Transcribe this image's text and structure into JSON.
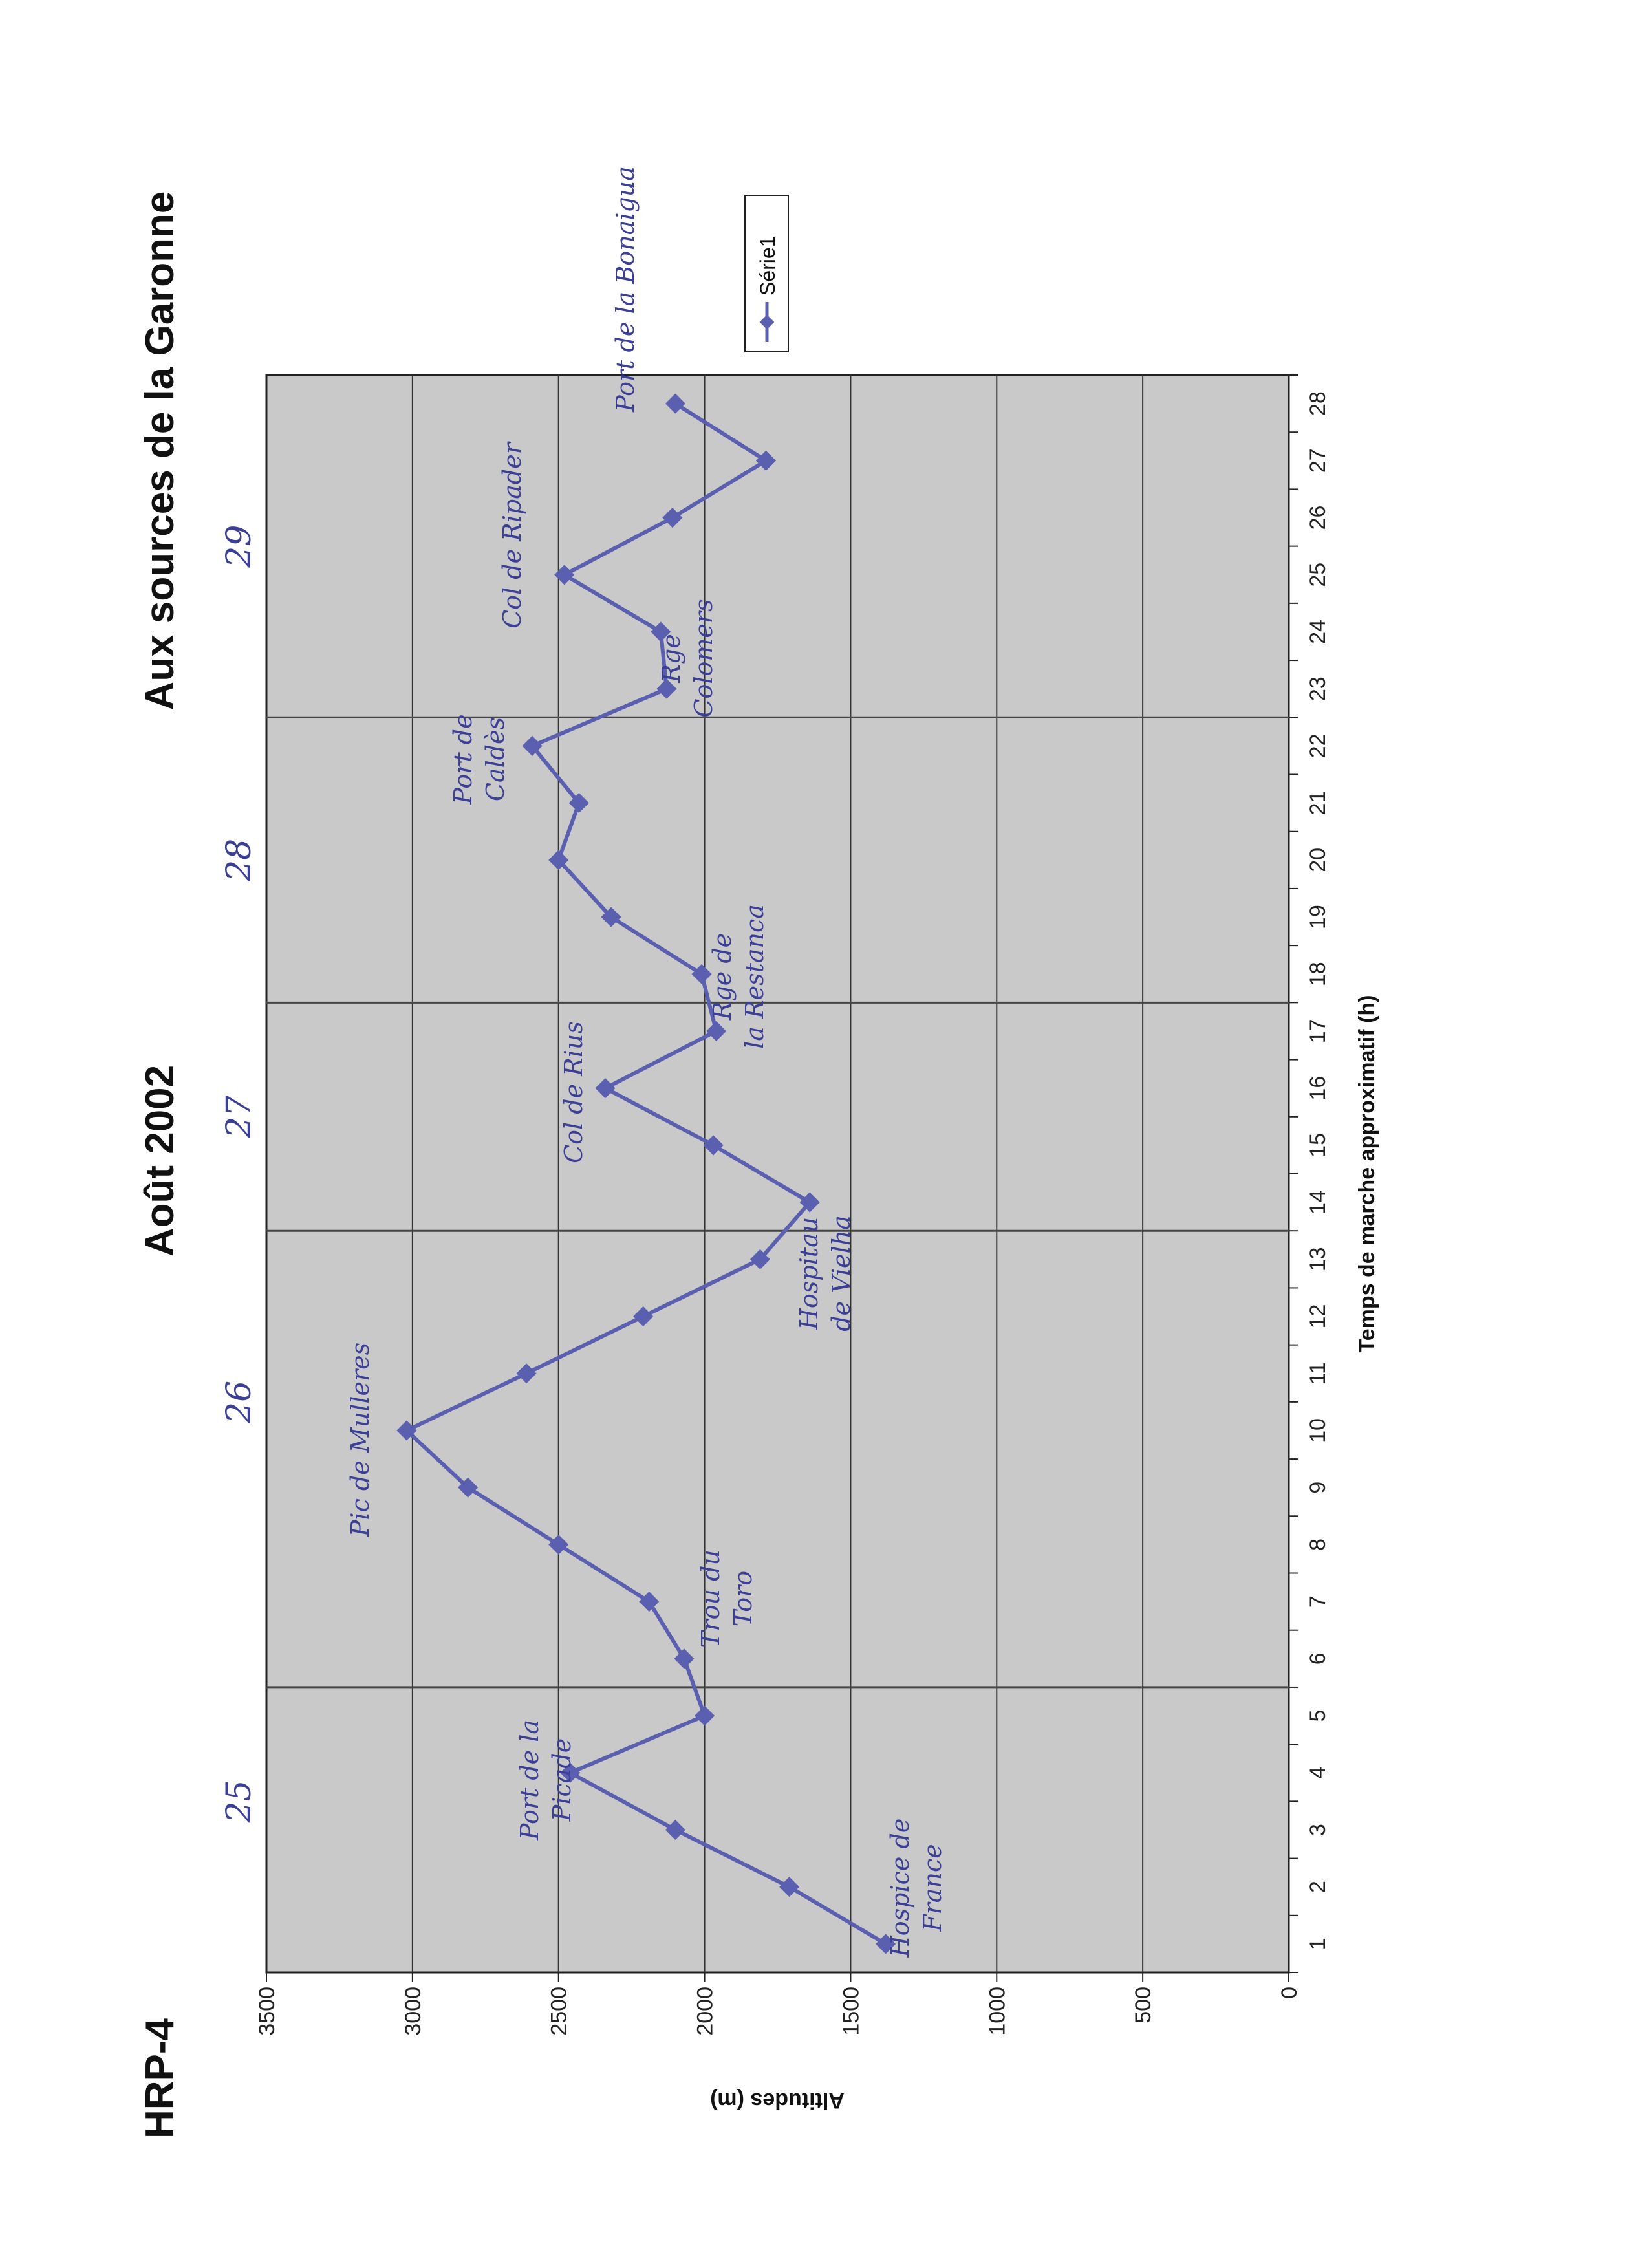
{
  "header": {
    "left": "HRP-4",
    "center": "Août 2002",
    "right": "Aux sources de la Garonne"
  },
  "chart_data": {
    "type": "line",
    "title": "Aux sources de la Garonne",
    "xlabel": "Temps de marche approximatif (h)",
    "ylabel": "Altitudes (m)",
    "categories": [
      1,
      2,
      3,
      4,
      5,
      6,
      7,
      8,
      9,
      10,
      11,
      12,
      13,
      14,
      15,
      16,
      17,
      18,
      19,
      20,
      21,
      22,
      23,
      24,
      25,
      26,
      27,
      28
    ],
    "series": [
      {
        "name": "Série1",
        "values": [
          1380,
          1710,
          2100,
          2460,
          2000,
          2070,
          2190,
          2500,
          2810,
          3020,
          2610,
          2210,
          1810,
          1640,
          1970,
          2340,
          1960,
          2010,
          2320,
          2500,
          2430,
          2590,
          2130,
          2150,
          2480,
          2110,
          1790,
          2100
        ]
      }
    ],
    "yticks": [
      0,
      500,
      1000,
      1500,
      2000,
      2500,
      3000,
      3500
    ],
    "ylim": [
      0,
      3500
    ],
    "grid": true,
    "legend": "right",
    "line_color": "#5a5fb0",
    "plot_background": "#c9c9c9",
    "orientation": "page rotated 90° counter-clockwise",
    "annotations": {
      "days": [
        {
          "label": "25",
          "at_hour": 3.5
        },
        {
          "label": "26",
          "at_hour": 10.5
        },
        {
          "label": "27",
          "at_hour": 15.5
        },
        {
          "label": "28",
          "at_hour": 20
        },
        {
          "label": "29",
          "at_hour": 25.5
        }
      ],
      "day_dividers_after_hour": [
        5.5,
        13.5,
        17.5,
        22.5
      ],
      "places": [
        {
          "lines": [
            "Hospice de",
            "France"
          ]
        },
        {
          "lines": [
            "Port de la",
            "Picade"
          ]
        },
        {
          "lines": [
            "Trou du",
            "Toro"
          ]
        },
        {
          "lines": [
            "Pic de Mulleres"
          ]
        },
        {
          "lines": [
            "Hospitau",
            "de Vielha"
          ]
        },
        {
          "lines": [
            "Col de Rius"
          ]
        },
        {
          "lines": [
            "Rge de",
            "la Restanca"
          ]
        },
        {
          "lines": [
            "Port de",
            "Caldès"
          ]
        },
        {
          "lines": [
            "Rge",
            "Colomers"
          ]
        },
        {
          "lines": [
            "Col de Ripader"
          ]
        },
        {
          "lines": [
            "Port de la Bonaigua"
          ]
        }
      ]
    }
  }
}
